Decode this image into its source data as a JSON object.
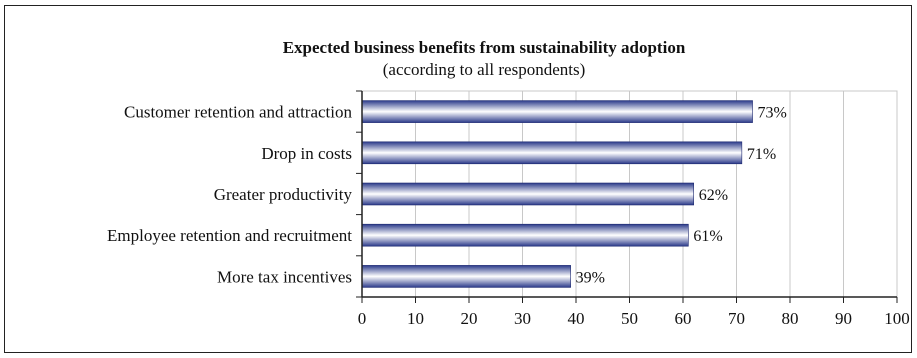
{
  "chart_data": {
    "type": "bar",
    "orientation": "horizontal",
    "title": "Expected business benefits from sustainability adoption",
    "subtitle": "(according to all respondents)",
    "categories": [
      "Customer retention and attraction",
      "Drop in costs",
      "Greater productivity",
      "Employee retention and recruitment",
      "More tax incentives"
    ],
    "values": [
      73,
      71,
      62,
      61,
      39
    ],
    "value_labels": [
      "73%",
      "71%",
      "62%",
      "61%",
      "39%"
    ],
    "xlim": [
      0,
      100
    ],
    "x_ticks": [
      0,
      10,
      20,
      30,
      40,
      50,
      60,
      70,
      80,
      90,
      100
    ],
    "grid": "vertical",
    "legend": "none",
    "colors": {
      "bar_dark": "#2b3a8a",
      "bar_light": "#ffffff",
      "grid": "#c8c8c8",
      "axis": "#222222"
    }
  }
}
